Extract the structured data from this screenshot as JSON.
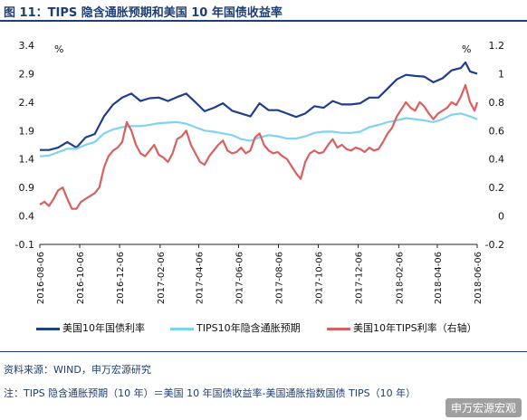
{
  "title": "图 11：TIPS 隐含通胀预期和美国 10 年国债收益率",
  "source": "资料来源：WIND，申万宏源研究",
  "note": "注：TIPS 隐含通胀预期（10 年）＝美国 10 年国债收益率-美国通胀指数国债 TIPS（10 年）",
  "watermark": "申万宏源宏观",
  "colors": {
    "us10y": "#1f3e8c",
    "breakeven": "#7fd3ef",
    "tips": "#d9605e",
    "title": "#1f3e74"
  },
  "chart_data": {
    "type": "line",
    "left_axis": {
      "unit": "%",
      "ylim": [
        -0.1,
        3.4
      ],
      "ticks": [
        "-0.1",
        "0.4",
        "0.9",
        "1.4",
        "1.9",
        "2.4",
        "2.9",
        "3.4"
      ]
    },
    "right_axis": {
      "unit": "%",
      "ylim": [
        -0.2,
        1.2
      ],
      "ticks": [
        "-0.2",
        "0",
        "0.2",
        "0.4",
        "0.6",
        "0.8",
        "1",
        "1.2"
      ]
    },
    "x_range": [
      "2016-08-06",
      "2018-06-06"
    ],
    "x_ticks": [
      "2016-08-06",
      "2016-10-06",
      "2016-12-06",
      "2017-02-06",
      "2017-04-06",
      "2017-06-06",
      "2017-08-06",
      "2017-10-06",
      "2017-12-06",
      "2018-02-06",
      "2018-04-06",
      "2018-06-06"
    ],
    "grid": false,
    "legend_position": "bottom",
    "series": [
      {
        "name": "美国10年国债利率",
        "axis": "left",
        "color_key": "us10y",
        "points": [
          [
            "2016-08-06",
            1.56
          ],
          [
            "2016-08-20",
            1.56
          ],
          [
            "2016-09-03",
            1.6
          ],
          [
            "2016-09-17",
            1.7
          ],
          [
            "2016-10-01",
            1.6
          ],
          [
            "2016-10-15",
            1.78
          ],
          [
            "2016-10-29",
            1.84
          ],
          [
            "2016-11-12",
            2.15
          ],
          [
            "2016-11-26",
            2.36
          ],
          [
            "2016-12-10",
            2.48
          ],
          [
            "2016-12-24",
            2.55
          ],
          [
            "2017-01-07",
            2.42
          ],
          [
            "2017-01-21",
            2.47
          ],
          [
            "2017-02-04",
            2.48
          ],
          [
            "2017-02-18",
            2.42
          ],
          [
            "2017-03-04",
            2.49
          ],
          [
            "2017-03-18",
            2.55
          ],
          [
            "2017-04-01",
            2.4
          ],
          [
            "2017-04-15",
            2.24
          ],
          [
            "2017-04-29",
            2.3
          ],
          [
            "2017-05-13",
            2.38
          ],
          [
            "2017-05-27",
            2.25
          ],
          [
            "2017-06-10",
            2.2
          ],
          [
            "2017-06-24",
            2.15
          ],
          [
            "2017-07-08",
            2.38
          ],
          [
            "2017-07-22",
            2.26
          ],
          [
            "2017-08-05",
            2.26
          ],
          [
            "2017-08-19",
            2.2
          ],
          [
            "2017-09-02",
            2.14
          ],
          [
            "2017-09-16",
            2.2
          ],
          [
            "2017-09-30",
            2.33
          ],
          [
            "2017-10-14",
            2.3
          ],
          [
            "2017-10-28",
            2.42
          ],
          [
            "2017-11-11",
            2.36
          ],
          [
            "2017-11-25",
            2.36
          ],
          [
            "2017-12-09",
            2.38
          ],
          [
            "2017-12-23",
            2.48
          ],
          [
            "2018-01-06",
            2.48
          ],
          [
            "2018-01-20",
            2.64
          ],
          [
            "2018-02-03",
            2.8
          ],
          [
            "2018-02-17",
            2.88
          ],
          [
            "2018-03-03",
            2.86
          ],
          [
            "2018-03-17",
            2.85
          ],
          [
            "2018-03-31",
            2.75
          ],
          [
            "2018-04-14",
            2.82
          ],
          [
            "2018-04-28",
            2.96
          ],
          [
            "2018-05-12",
            3.0
          ],
          [
            "2018-05-19",
            3.1
          ],
          [
            "2018-05-26",
            2.94
          ],
          [
            "2018-06-06",
            2.9
          ]
        ]
      },
      {
        "name": "TIPS10年隐含通胀预期",
        "axis": "left",
        "color_key": "breakeven",
        "points": [
          [
            "2016-08-06",
            1.45
          ],
          [
            "2016-08-20",
            1.46
          ],
          [
            "2016-09-03",
            1.52
          ],
          [
            "2016-09-17",
            1.58
          ],
          [
            "2016-10-01",
            1.58
          ],
          [
            "2016-10-15",
            1.65
          ],
          [
            "2016-10-29",
            1.7
          ],
          [
            "2016-11-12",
            1.85
          ],
          [
            "2016-11-26",
            1.92
          ],
          [
            "2016-12-10",
            1.96
          ],
          [
            "2016-12-24",
            1.98
          ],
          [
            "2017-01-07",
            1.98
          ],
          [
            "2017-01-21",
            2.0
          ],
          [
            "2017-02-04",
            2.03
          ],
          [
            "2017-02-18",
            2.04
          ],
          [
            "2017-03-04",
            2.05
          ],
          [
            "2017-03-18",
            2.02
          ],
          [
            "2017-04-01",
            1.96
          ],
          [
            "2017-04-15",
            1.9
          ],
          [
            "2017-04-29",
            1.88
          ],
          [
            "2017-05-13",
            1.85
          ],
          [
            "2017-05-27",
            1.82
          ],
          [
            "2017-06-10",
            1.75
          ],
          [
            "2017-06-24",
            1.72
          ],
          [
            "2017-07-08",
            1.78
          ],
          [
            "2017-07-22",
            1.82
          ],
          [
            "2017-08-05",
            1.8
          ],
          [
            "2017-08-19",
            1.76
          ],
          [
            "2017-09-02",
            1.76
          ],
          [
            "2017-09-16",
            1.8
          ],
          [
            "2017-09-30",
            1.86
          ],
          [
            "2017-10-14",
            1.88
          ],
          [
            "2017-10-28",
            1.88
          ],
          [
            "2017-11-11",
            1.86
          ],
          [
            "2017-11-25",
            1.86
          ],
          [
            "2017-12-09",
            1.88
          ],
          [
            "2017-12-23",
            1.96
          ],
          [
            "2018-01-06",
            2.0
          ],
          [
            "2018-01-20",
            2.05
          ],
          [
            "2018-02-03",
            2.08
          ],
          [
            "2018-02-17",
            2.12
          ],
          [
            "2018-03-03",
            2.1
          ],
          [
            "2018-03-17",
            2.08
          ],
          [
            "2018-03-31",
            2.05
          ],
          [
            "2018-04-14",
            2.1
          ],
          [
            "2018-04-28",
            2.18
          ],
          [
            "2018-05-12",
            2.2
          ],
          [
            "2018-05-26",
            2.15
          ],
          [
            "2018-06-06",
            2.1
          ]
        ]
      },
      {
        "name": "美国10年TIPS利率（右轴）",
        "axis": "right",
        "color_key": "tips",
        "points": [
          [
            "2016-08-06",
            0.08
          ],
          [
            "2016-08-13",
            0.1
          ],
          [
            "2016-08-20",
            0.07
          ],
          [
            "2016-08-27",
            0.12
          ],
          [
            "2016-09-03",
            0.18
          ],
          [
            "2016-09-10",
            0.2
          ],
          [
            "2016-09-17",
            0.12
          ],
          [
            "2016-09-24",
            0.05
          ],
          [
            "2016-10-01",
            0.05
          ],
          [
            "2016-10-08",
            0.1
          ],
          [
            "2016-10-15",
            0.12
          ],
          [
            "2016-10-22",
            0.14
          ],
          [
            "2016-10-29",
            0.16
          ],
          [
            "2016-11-05",
            0.2
          ],
          [
            "2016-11-12",
            0.34
          ],
          [
            "2016-11-19",
            0.42
          ],
          [
            "2016-11-26",
            0.46
          ],
          [
            "2016-12-03",
            0.48
          ],
          [
            "2016-12-10",
            0.52
          ],
          [
            "2016-12-17",
            0.66
          ],
          [
            "2016-12-24",
            0.6
          ],
          [
            "2016-12-31",
            0.5
          ],
          [
            "2017-01-07",
            0.44
          ],
          [
            "2017-01-14",
            0.42
          ],
          [
            "2017-01-21",
            0.46
          ],
          [
            "2017-01-28",
            0.5
          ],
          [
            "2017-02-04",
            0.43
          ],
          [
            "2017-02-11",
            0.41
          ],
          [
            "2017-02-18",
            0.38
          ],
          [
            "2017-02-25",
            0.44
          ],
          [
            "2017-03-04",
            0.54
          ],
          [
            "2017-03-11",
            0.56
          ],
          [
            "2017-03-18",
            0.6
          ],
          [
            "2017-03-25",
            0.5
          ],
          [
            "2017-04-01",
            0.44
          ],
          [
            "2017-04-08",
            0.38
          ],
          [
            "2017-04-15",
            0.36
          ],
          [
            "2017-04-22",
            0.42
          ],
          [
            "2017-04-29",
            0.46
          ],
          [
            "2017-05-06",
            0.5
          ],
          [
            "2017-05-13",
            0.53
          ],
          [
            "2017-05-20",
            0.46
          ],
          [
            "2017-05-27",
            0.44
          ],
          [
            "2017-06-03",
            0.45
          ],
          [
            "2017-06-10",
            0.48
          ],
          [
            "2017-06-17",
            0.44
          ],
          [
            "2017-06-24",
            0.46
          ],
          [
            "2017-07-01",
            0.55
          ],
          [
            "2017-07-08",
            0.58
          ],
          [
            "2017-07-15",
            0.5
          ],
          [
            "2017-07-22",
            0.46
          ],
          [
            "2017-07-29",
            0.44
          ],
          [
            "2017-08-05",
            0.45
          ],
          [
            "2017-08-12",
            0.42
          ],
          [
            "2017-08-19",
            0.4
          ],
          [
            "2017-08-26",
            0.35
          ],
          [
            "2017-09-02",
            0.3
          ],
          [
            "2017-09-09",
            0.26
          ],
          [
            "2017-09-16",
            0.38
          ],
          [
            "2017-09-23",
            0.44
          ],
          [
            "2017-09-30",
            0.46
          ],
          [
            "2017-10-07",
            0.44
          ],
          [
            "2017-10-14",
            0.45
          ],
          [
            "2017-10-21",
            0.5
          ],
          [
            "2017-10-28",
            0.54
          ],
          [
            "2017-11-04",
            0.48
          ],
          [
            "2017-11-11",
            0.5
          ],
          [
            "2017-11-18",
            0.47
          ],
          [
            "2017-11-25",
            0.46
          ],
          [
            "2017-12-02",
            0.48
          ],
          [
            "2017-12-09",
            0.47
          ],
          [
            "2017-12-16",
            0.45
          ],
          [
            "2017-12-23",
            0.48
          ],
          [
            "2017-12-30",
            0.46
          ],
          [
            "2018-01-06",
            0.47
          ],
          [
            "2018-01-13",
            0.52
          ],
          [
            "2018-01-20",
            0.58
          ],
          [
            "2018-01-27",
            0.62
          ],
          [
            "2018-02-03",
            0.7
          ],
          [
            "2018-02-10",
            0.75
          ],
          [
            "2018-02-17",
            0.8
          ],
          [
            "2018-02-24",
            0.76
          ],
          [
            "2018-03-03",
            0.74
          ],
          [
            "2018-03-10",
            0.8
          ],
          [
            "2018-03-17",
            0.77
          ],
          [
            "2018-03-24",
            0.72
          ],
          [
            "2018-03-31",
            0.68
          ],
          [
            "2018-04-07",
            0.72
          ],
          [
            "2018-04-14",
            0.74
          ],
          [
            "2018-04-21",
            0.76
          ],
          [
            "2018-04-28",
            0.8
          ],
          [
            "2018-05-05",
            0.78
          ],
          [
            "2018-05-12",
            0.84
          ],
          [
            "2018-05-19",
            0.92
          ],
          [
            "2018-05-26",
            0.8
          ],
          [
            "2018-06-02",
            0.74
          ],
          [
            "2018-06-06",
            0.8
          ]
        ]
      }
    ]
  }
}
